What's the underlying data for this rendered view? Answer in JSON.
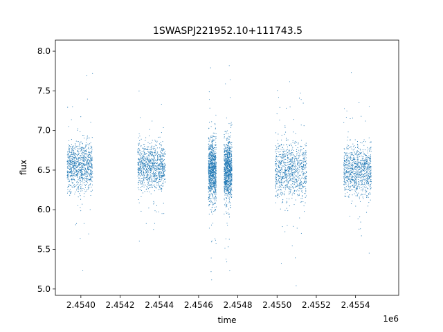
{
  "chart_data": {
    "type": "scatter",
    "title": "1SWASPJ221952.10+111743.5",
    "xlabel": "time",
    "ylabel": "flux",
    "x_offset_label": "1e6",
    "xlim": [
      2.45387,
      2.45562
    ],
    "ylim": [
      4.92,
      8.14
    ],
    "x_ticks": [
      2.454,
      2.4542,
      2.4544,
      2.4546,
      2.4548,
      2.455,
      2.4552,
      2.4554
    ],
    "x_tick_labels": [
      "2.4540",
      "2.4542",
      "2.4544",
      "2.4546",
      "2.4548",
      "2.4550",
      "2.4552",
      "2.4554"
    ],
    "y_ticks": [
      5.0,
      5.5,
      6.0,
      6.5,
      7.0,
      7.5,
      8.0
    ],
    "y_tick_labels": [
      "5.0",
      "5.5",
      "6.0",
      "6.5",
      "7.0",
      "7.5",
      "8.0"
    ],
    "grid": false,
    "marker_color": "#1f77b4",
    "observing_seasons": [
      {
        "x_range": [
          2.45393,
          2.45406
        ],
        "core_flux_range": [
          6.15,
          7.05
        ],
        "flux_median": 6.55
      },
      {
        "x_range": [
          2.45429,
          2.45443
        ],
        "core_flux_range": [
          6.15,
          7.0
        ],
        "flux_median": 6.55
      },
      {
        "x_range": [
          2.45465,
          2.45469
        ],
        "core_flux_range": [
          5.95,
          7.1
        ],
        "flux_median": 6.5
      },
      {
        "x_range": [
          2.45473,
          2.45477
        ],
        "core_flux_range": [
          6.0,
          7.1
        ],
        "flux_median": 6.5
      },
      {
        "x_range": [
          2.45499,
          2.45515
        ],
        "core_flux_range": [
          6.0,
          7.05
        ],
        "flux_median": 6.5
      },
      {
        "x_range": [
          2.45534,
          2.45548
        ],
        "core_flux_range": [
          6.1,
          7.0
        ],
        "flux_median": 6.5
      }
    ]
  }
}
